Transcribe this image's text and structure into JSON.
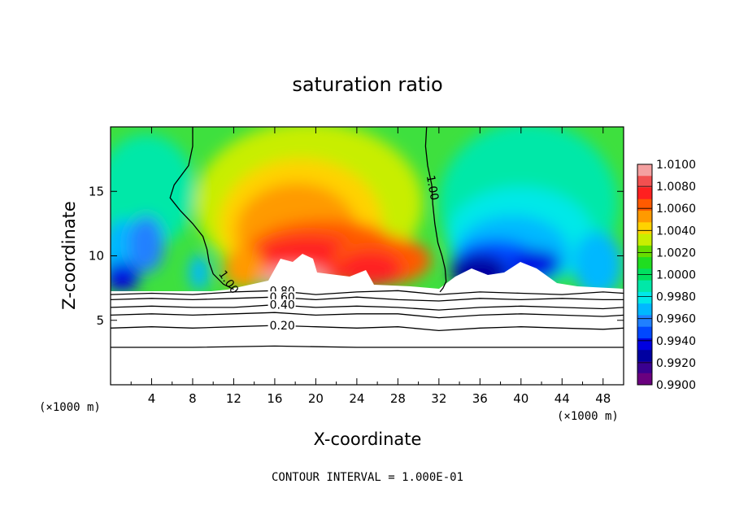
{
  "chart_data": {
    "type": "heatmap",
    "title": "saturation ratio",
    "xlabel": "X-coordinate",
    "ylabel": "Z-coordinate",
    "x_unit_label": "(×1000 m)",
    "xlim": [
      0,
      50
    ],
    "ylim": [
      0,
      20
    ],
    "x_ticks": [
      4,
      8,
      12,
      16,
      20,
      24,
      28,
      32,
      36,
      40,
      44,
      48
    ],
    "y_ticks": [
      5,
      10,
      15
    ],
    "colorbar": {
      "levels": [
        "1.0100",
        "1.0080",
        "1.0060",
        "1.0040",
        "1.0020",
        "1.0000",
        "0.9980",
        "0.9960",
        "0.9940",
        "0.9920",
        "0.9900"
      ],
      "colors": [
        "#f4a0a0",
        "#f25050",
        "#ff2020",
        "#ff5a00",
        "#ff9a00",
        "#ffd200",
        "#c8ee00",
        "#66dd00",
        "#20dd20",
        "#00e060",
        "#00e8a8",
        "#00e8e8",
        "#00b8ff",
        "#2080ff",
        "#0048ff",
        "#0000e0",
        "#0000a0",
        "#3a0090",
        "#6a007f"
      ]
    },
    "contour_lines": [
      {
        "value": 1.0,
        "label": "1.00",
        "x": [
          8.0,
          8.0,
          7.6,
          6.2,
          5.8,
          6.8,
          8.0,
          9.0,
          9.4,
          9.6,
          10.0,
          11.0,
          12.0
        ],
        "y": [
          20.0,
          18.5,
          17.0,
          15.5,
          14.5,
          13.5,
          12.5,
          11.5,
          10.5,
          9.5,
          8.6,
          7.8,
          7.4
        ]
      },
      {
        "value": 1.0,
        "label": "1.00",
        "x": [
          30.8,
          30.7,
          30.9,
          31.3,
          31.4,
          31.6,
          31.9,
          32.3,
          32.6,
          32.7,
          32.4,
          32.1
        ],
        "y": [
          20.0,
          18.5,
          17.0,
          15.5,
          14.0,
          12.5,
          11.0,
          10.0,
          9.0,
          8.0,
          7.5,
          7.2
        ]
      },
      {
        "value": 0.8,
        "label": "0.80",
        "x": [
          0,
          4,
          8,
          12,
          16,
          20,
          24,
          28,
          32,
          36,
          40,
          44,
          48,
          50
        ],
        "y": [
          7.0,
          7.1,
          7.0,
          7.2,
          7.3,
          7.0,
          7.2,
          7.3,
          7.0,
          7.2,
          7.1,
          7.0,
          7.2,
          7.1
        ]
      },
      {
        "value": 0.6,
        "label": "0.60",
        "x": [
          0,
          4,
          8,
          12,
          16,
          20,
          24,
          28,
          32,
          36,
          40,
          44,
          48,
          50
        ],
        "y": [
          6.6,
          6.7,
          6.6,
          6.7,
          6.8,
          6.6,
          6.8,
          6.6,
          6.5,
          6.7,
          6.6,
          6.7,
          6.6,
          6.6
        ]
      },
      {
        "value": 0.4,
        "label": "0.40",
        "x": [
          0,
          4,
          8,
          12,
          16,
          20,
          24,
          28,
          32,
          36,
          40,
          44,
          48,
          50
        ],
        "y": [
          6.0,
          6.1,
          6.0,
          6.0,
          6.2,
          6.0,
          6.1,
          6.0,
          5.8,
          6.0,
          6.1,
          6.0,
          5.9,
          6.0
        ]
      },
      {
        "value": 0.3,
        "label": "",
        "x": [
          0,
          4,
          8,
          12,
          16,
          20,
          24,
          28,
          32,
          36,
          40,
          44,
          48,
          50
        ],
        "y": [
          5.4,
          5.5,
          5.4,
          5.5,
          5.6,
          5.4,
          5.5,
          5.5,
          5.2,
          5.4,
          5.5,
          5.4,
          5.3,
          5.4
        ]
      },
      {
        "value": 0.2,
        "label": "0.20",
        "x": [
          0,
          4,
          8,
          12,
          16,
          20,
          24,
          28,
          32,
          36,
          40,
          44,
          48,
          50
        ],
        "y": [
          4.4,
          4.5,
          4.4,
          4.5,
          4.6,
          4.5,
          4.4,
          4.5,
          4.2,
          4.4,
          4.5,
          4.4,
          4.3,
          4.4
        ]
      },
      {
        "value": 0.1,
        "label": "",
        "x": [
          0,
          8,
          16,
          24,
          32,
          40,
          50
        ],
        "y": [
          2.9,
          2.9,
          3.0,
          2.9,
          2.9,
          2.9,
          2.9
        ]
      }
    ],
    "footer": "CONTOUR INTERVAL = 1.000E-01"
  }
}
